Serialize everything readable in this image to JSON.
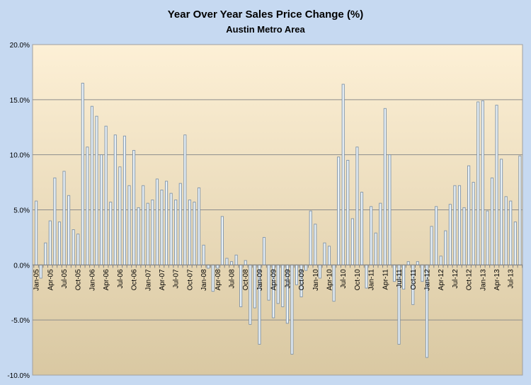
{
  "chart_data": {
    "type": "bar",
    "title": "Year Over Year Sales Price Change (%)",
    "subtitle": "Austin Metro Area",
    "xlabel": "",
    "ylabel": "",
    "ylim": [
      -10,
      20
    ],
    "y_ticks": [
      "-10.0%",
      "-5.0%",
      "0.0%",
      "5.0%",
      "10.0%",
      "15.0%",
      "20.0%"
    ],
    "grid": true,
    "x_tick_labels": [
      "Jan-05",
      "Apr-05",
      "Jul-05",
      "Oct-05",
      "Jan-06",
      "Apr-06",
      "Jul-06",
      "Oct-06",
      "Jan-07",
      "Apr-07",
      "Jul-07",
      "Oct-07",
      "Jan-08",
      "Apr-08",
      "Jul-08",
      "Oct-08",
      "Jan-09",
      "Apr-09",
      "Jul-09",
      "Oct-09",
      "Jan-10",
      "Apr-10",
      "Jul-10",
      "Oct-10",
      "Jan-11",
      "Apr-11",
      "Jul-11",
      "Oct-11",
      "Jan-12",
      "Apr-12",
      "Jul-12",
      "Oct-12",
      "Jan-13",
      "Apr-13",
      "Jul-13"
    ],
    "x_start": "Jan-05",
    "x_end": "Sep-13",
    "values": [
      5.8,
      -1.2,
      2.0,
      4.0,
      7.9,
      3.9,
      8.5,
      6.3,
      3.2,
      2.8,
      16.5,
      10.7,
      14.4,
      13.5,
      10.0,
      12.6,
      5.7,
      11.8,
      8.9,
      11.7,
      7.2,
      10.4,
      5.2,
      7.2,
      5.6,
      5.9,
      7.8,
      6.8,
      7.6,
      6.5,
      5.9,
      7.4,
      11.8,
      5.9,
      5.7,
      7.0,
      1.8,
      -0.3,
      -2.4,
      -0.3,
      4.4,
      0.6,
      0.3,
      0.9,
      -3.8,
      0.4,
      -5.4,
      -3.9,
      -7.2,
      2.5,
      -3.2,
      -4.8,
      -3.5,
      -3.8,
      -5.3,
      -8.1,
      -1.8,
      -2.9,
      -0.5,
      4.9,
      3.7,
      -1.2,
      2.0,
      1.7,
      -3.3,
      9.8,
      16.4,
      9.5,
      4.2,
      10.7,
      6.6,
      -2.1,
      5.3,
      2.9,
      5.6,
      14.2,
      10.0,
      -1.5,
      -7.2,
      -2.2,
      0.3,
      -3.6,
      0.3,
      -1.5,
      -8.4,
      3.5,
      5.3,
      0.8,
      3.1,
      5.5,
      7.2,
      7.2,
      5.2,
      9.0,
      7.5,
      14.8,
      14.9,
      4.9,
      7.9,
      14.5,
      9.6,
      6.2,
      5.8,
      3.9,
      9.9
    ],
    "colors": {
      "background": "#c6d9f1",
      "plot_top": "#fdf0d6",
      "plot_bottom": "#d9c8a2",
      "bar_fill": "#e8f1f8",
      "bar_stroke": "#7f93a8",
      "grid": "#8c8c8c"
    }
  }
}
